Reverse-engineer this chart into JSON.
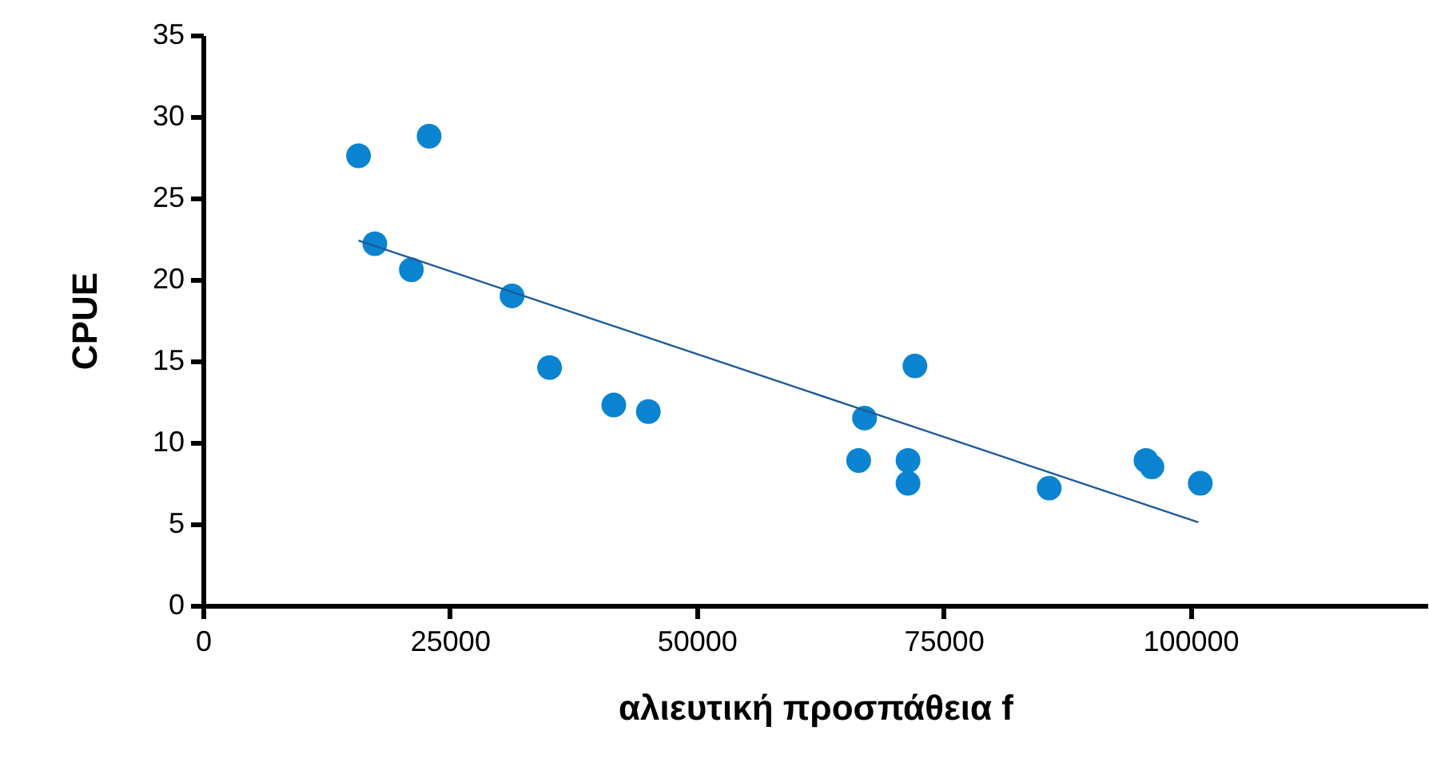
{
  "chart_data": {
    "type": "scatter",
    "xlabel": "αλιευτική προσπάθεια f",
    "ylabel": "CPUE",
    "xlim": [
      0,
      124000
    ],
    "xticks": [
      0,
      25000,
      50000,
      75000,
      100000
    ],
    "ylim": [
      0,
      35
    ],
    "yticks": [
      0,
      5,
      10,
      15,
      20,
      25,
      30,
      35
    ],
    "grid": false,
    "series": [
      {
        "color": "#0a84d0",
        "marker": "circle",
        "x": [
          15750,
          22900,
          17400,
          21100,
          31300,
          35100,
          41600,
          45100,
          66400,
          67000,
          71400,
          71400,
          72100,
          85700,
          95500,
          96100,
          101000
        ],
        "values": [
          27.6,
          28.8,
          22.2,
          20.6,
          19.0,
          14.6,
          12.3,
          11.9,
          8.9,
          11.5,
          8.9,
          7.5,
          14.7,
          7.2,
          8.9,
          8.5,
          7.5
        ]
      },
      {
        "type": "line",
        "color": "#1f5a9a",
        "x": [
          15750,
          100800
        ],
        "values": [
          22.4,
          5.1
        ]
      }
    ]
  }
}
